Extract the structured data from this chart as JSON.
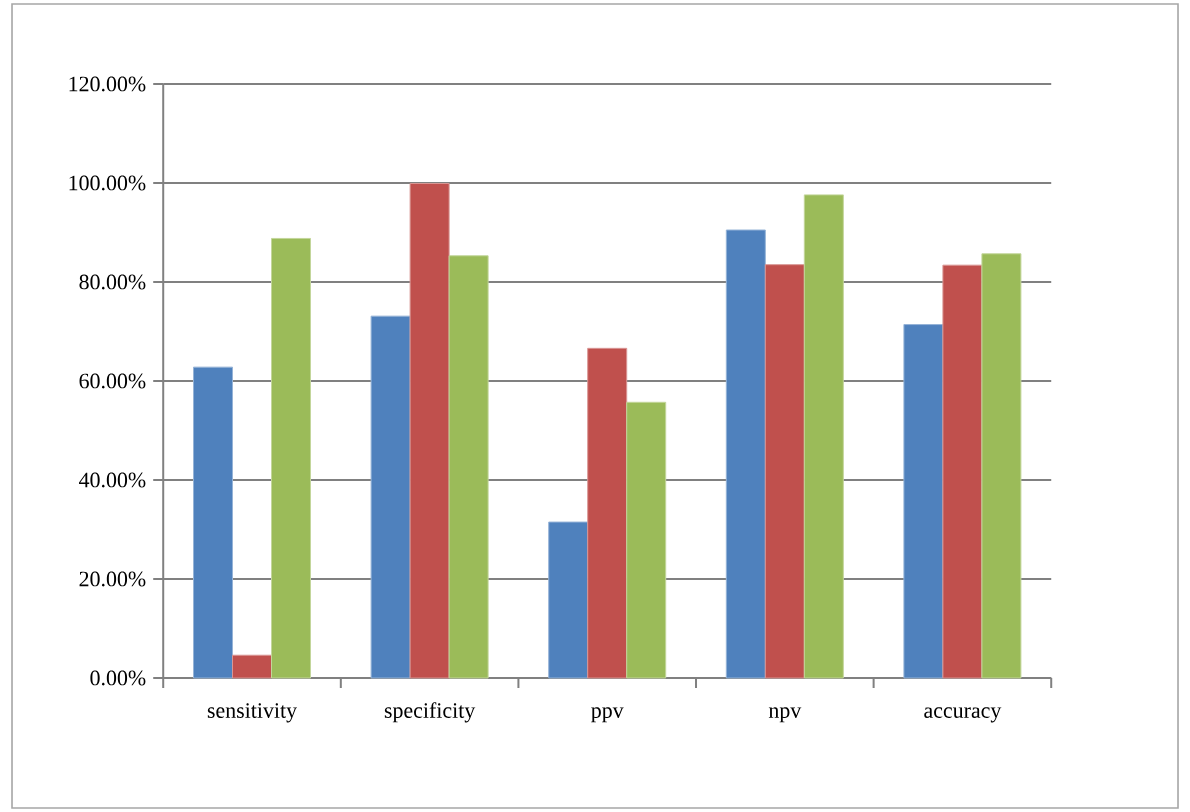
{
  "chart_data": {
    "type": "bar",
    "categories": [
      "sensitivity",
      "specificity",
      "ppv",
      "npv",
      "accuracy"
    ],
    "series": [
      {
        "color": "#4f81bd",
        "values": [
          62.8,
          73.1,
          31.5,
          90.5,
          71.4
        ]
      },
      {
        "color": "#c0504d",
        "values": [
          4.6,
          99.9,
          66.6,
          83.5,
          83.4
        ]
      },
      {
        "color": "#9bbb59",
        "values": [
          88.8,
          85.3,
          55.7,
          97.6,
          85.7
        ]
      }
    ],
    "ylim": [
      0,
      120
    ],
    "yticks": [
      {
        "value": 0,
        "label": "0.00%"
      },
      {
        "value": 20,
        "label": "20.00%"
      },
      {
        "value": 40,
        "label": "40.00%"
      },
      {
        "value": 60,
        "label": "60.00%"
      },
      {
        "value": 80,
        "label": "80.00%"
      },
      {
        "value": 100,
        "label": "100.00%"
      },
      {
        "value": 120,
        "label": "120.00%"
      }
    ],
    "grid": "y"
  }
}
